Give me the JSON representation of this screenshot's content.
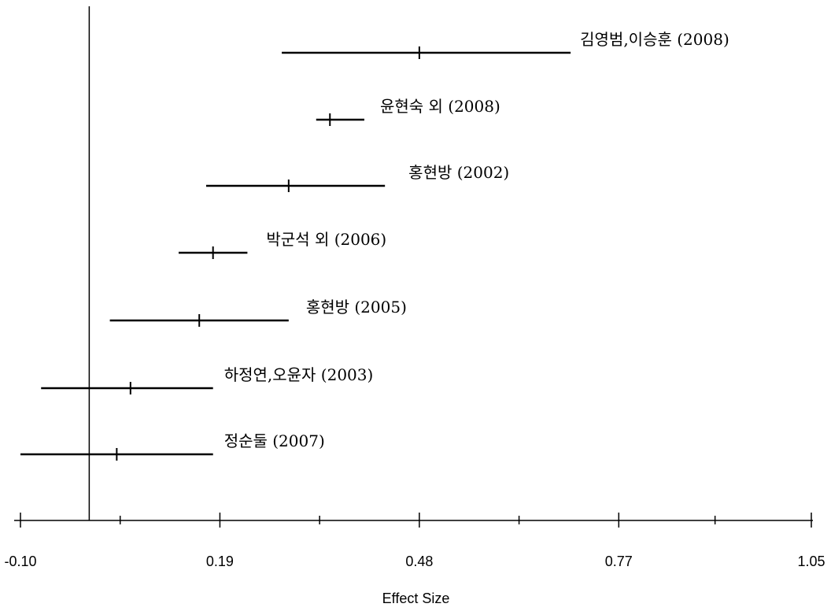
{
  "chart_data": {
    "type": "forest",
    "xlabel": "Effect Size",
    "xlim": [
      -0.1,
      1.05
    ],
    "ticks": [
      "-0.10",
      "0.19",
      "0.48",
      "0.77",
      "1.05"
    ],
    "minor_ticks": [
      0.045,
      0.335,
      0.625,
      0.91
    ],
    "reference_line": 0.0,
    "studies": [
      {
        "label": "김영범,이승훈 (2008)",
        "estimate": 0.48,
        "lower": 0.28,
        "upper": 0.7
      },
      {
        "label": "윤현숙 외 (2008)",
        "estimate": 0.35,
        "lower": 0.33,
        "upper": 0.4
      },
      {
        "label": "홍현방 (2002)",
        "estimate": 0.29,
        "lower": 0.17,
        "upper": 0.43
      },
      {
        "label": "박군석 외 (2006)",
        "estimate": 0.18,
        "lower": 0.13,
        "upper": 0.23
      },
      {
        "label": "홍현방 (2005)",
        "estimate": 0.16,
        "lower": 0.03,
        "upper": 0.29
      },
      {
        "label": "하정연,오윤자 (2003)",
        "estimate": 0.06,
        "lower": -0.07,
        "upper": 0.18
      },
      {
        "label": "정순둘 (2007)",
        "estimate": 0.04,
        "lower": -0.1,
        "upper": 0.18
      }
    ]
  }
}
